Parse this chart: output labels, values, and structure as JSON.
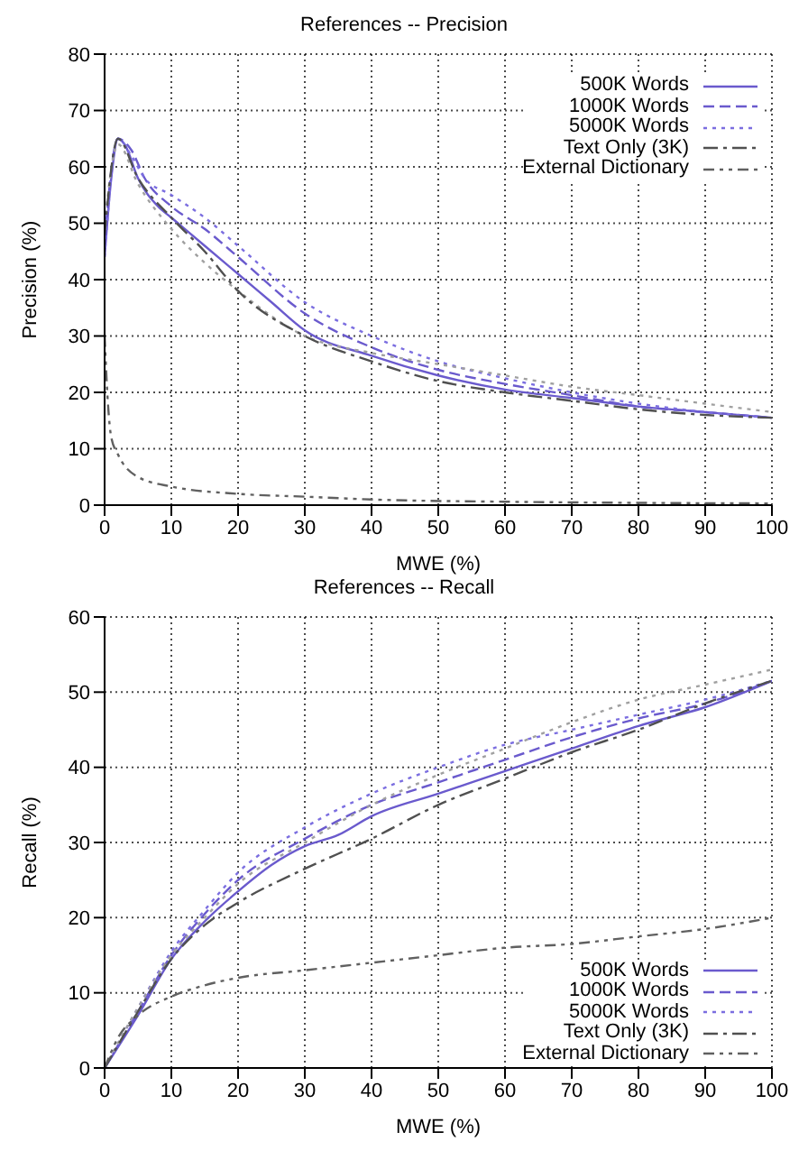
{
  "chart_data": [
    {
      "type": "line",
      "title": "References -- Precision",
      "xlabel": "MWE (%)",
      "ylabel": "Precision (%)",
      "xlim": [
        0,
        100
      ],
      "xticks": [
        0,
        10,
        20,
        30,
        40,
        50,
        60,
        70,
        80,
        90,
        100
      ],
      "ylim": [
        0,
        80
      ],
      "yticks": [
        0,
        10,
        20,
        30,
        40,
        50,
        60,
        70,
        80
      ],
      "grid": true,
      "legend": "top right",
      "marker": "none",
      "series": [
        {
          "name": "500K Words",
          "color": "#6a5acd",
          "line_style": "solid",
          "x": [
            0,
            1,
            2,
            3,
            5,
            8,
            10,
            15,
            20,
            25,
            30,
            40,
            50,
            60,
            70,
            80,
            90,
            100
          ],
          "values": [
            44,
            58,
            65,
            64,
            58,
            53,
            51,
            46,
            41,
            36,
            31,
            26.5,
            23,
            20.5,
            19,
            17.5,
            16.5,
            15.5
          ]
        },
        {
          "name": "1000K Words",
          "color": "#6a5acd",
          "line_style": "dashed",
          "x": [
            0,
            2,
            4,
            6,
            10,
            15,
            20,
            30,
            40,
            50,
            60,
            70,
            80,
            90,
            100
          ],
          "values": [
            47,
            65,
            63,
            58,
            53,
            49,
            44,
            34,
            28,
            24,
            21.5,
            19.5,
            17.5,
            16.5,
            15.5
          ]
        },
        {
          "name": "5000K Words",
          "color": "#7b6ee0",
          "line_style": "dotted",
          "x": [
            0,
            2,
            4,
            6,
            10,
            15,
            20,
            30,
            40,
            50,
            60,
            70,
            80,
            90,
            100
          ],
          "values": [
            44,
            65,
            62,
            58,
            55,
            51,
            46,
            36,
            30,
            25.5,
            22.5,
            20,
            18,
            16.5,
            15.5
          ]
        },
        {
          "color": "#a0a0a0",
          "line_style": "dotted",
          "x": [
            0,
            2,
            5,
            10,
            15,
            20,
            30,
            40,
            50,
            60,
            70,
            80,
            90,
            100
          ],
          "values": [
            50,
            64,
            57,
            49,
            43,
            38,
            30,
            27,
            25,
            23,
            21,
            19.5,
            18,
            16.5
          ]
        },
        {
          "name": "Text Only (3K)",
          "color": "#505050",
          "line_style": "dashdot",
          "x": [
            0,
            2,
            5,
            10,
            15,
            20,
            30,
            40,
            50,
            60,
            70,
            80,
            90,
            100
          ],
          "values": [
            48,
            65,
            58,
            51,
            45,
            38,
            30,
            25.5,
            22,
            20,
            18.5,
            17,
            16,
            15.5
          ]
        },
        {
          "name": "External Dictionary",
          "color": "#606060",
          "line_style": "dashdotdot",
          "x": [
            0,
            0.5,
            1,
            2,
            5,
            10,
            20,
            30,
            40,
            60,
            80,
            100
          ],
          "values": [
            30,
            18,
            12,
            9,
            5,
            3.3,
            2,
            1.5,
            1,
            0.6,
            0.4,
            0.3
          ]
        }
      ]
    },
    {
      "type": "line",
      "title": "References -- Recall",
      "xlabel": "MWE (%)",
      "ylabel": "Recall (%)",
      "xlim": [
        0,
        100
      ],
      "xticks": [
        0,
        10,
        20,
        30,
        40,
        50,
        60,
        70,
        80,
        90,
        100
      ],
      "ylim": [
        0,
        60
      ],
      "yticks": [
        0,
        10,
        20,
        30,
        40,
        50,
        60
      ],
      "grid": true,
      "legend": "bottom right",
      "marker": "none",
      "series": [
        {
          "name": "500K Words",
          "color": "#6a5acd",
          "line_style": "solid",
          "x": [
            0,
            5,
            10,
            15,
            20,
            25,
            30,
            35,
            40,
            50,
            60,
            70,
            80,
            90,
            100
          ],
          "values": [
            0,
            7,
            14.5,
            19.5,
            23.5,
            27,
            29.5,
            31,
            33.5,
            36.5,
            39.5,
            42.5,
            45.5,
            48,
            51.5
          ]
        },
        {
          "name": "1000K Words",
          "color": "#6a5acd",
          "line_style": "dashed",
          "x": [
            0,
            5,
            10,
            15,
            20,
            30,
            40,
            50,
            60,
            70,
            80,
            90,
            100
          ],
          "values": [
            0,
            7.5,
            15,
            20.5,
            25,
            30.5,
            35,
            38,
            41,
            44,
            46.5,
            48.5,
            51.5
          ]
        },
        {
          "name": "5000K Words",
          "color": "#7b6ee0",
          "line_style": "dotted",
          "x": [
            0,
            5,
            10,
            15,
            20,
            30,
            40,
            50,
            60,
            70,
            80,
            90,
            100
          ],
          "values": [
            0,
            8,
            15.5,
            21,
            26,
            32,
            36.5,
            40,
            43,
            45,
            47,
            49,
            51.5
          ]
        },
        {
          "color": "#a0a0a0",
          "line_style": "dotted",
          "x": [
            0,
            5,
            10,
            15,
            20,
            30,
            40,
            50,
            60,
            70,
            80,
            90,
            100
          ],
          "values": [
            0,
            8,
            15,
            20,
            24.5,
            30,
            35,
            39,
            42.5,
            46,
            49,
            51,
            53
          ]
        },
        {
          "name": "Text Only (3K)",
          "color": "#505050",
          "line_style": "dashdot",
          "x": [
            0,
            5,
            10,
            15,
            20,
            30,
            40,
            50,
            60,
            70,
            80,
            90,
            100
          ],
          "values": [
            0,
            7.5,
            14.5,
            19,
            22,
            26.5,
            30.5,
            35,
            38.5,
            42,
            45,
            48.5,
            51.5
          ]
        },
        {
          "name": "External Dictionary",
          "color": "#606060",
          "line_style": "dashdotdot",
          "x": [
            0,
            2,
            5,
            10,
            15,
            20,
            30,
            40,
            50,
            60,
            70,
            80,
            90,
            100
          ],
          "values": [
            0,
            4,
            7,
            9.5,
            11,
            12,
            13,
            14,
            15,
            16,
            16.5,
            17.5,
            18.5,
            20
          ]
        }
      ]
    }
  ]
}
